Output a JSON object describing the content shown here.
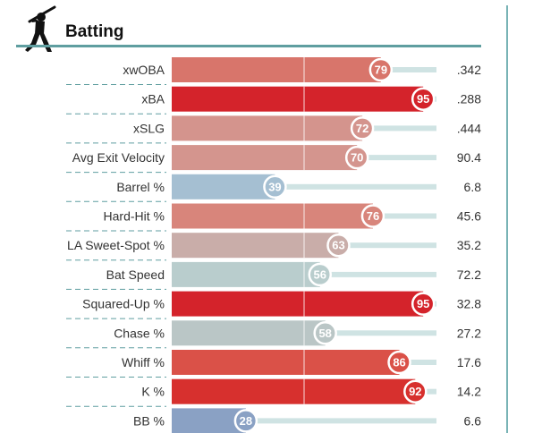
{
  "header": {
    "title": "Batting",
    "icon": "batter-silhouette-icon"
  },
  "chart_data": {
    "type": "bar",
    "orientation": "horizontal",
    "title": "Batting",
    "percentile_range": [
      0,
      100
    ],
    "rows": [
      {
        "label": "xwOBA",
        "percentile": 79,
        "value": ".342",
        "color": "#d8756b"
      },
      {
        "label": "xBA",
        "percentile": 95,
        "value": ".288",
        "color": "#d4232b"
      },
      {
        "label": "xSLG",
        "percentile": 72,
        "value": ".444",
        "color": "#d4948d"
      },
      {
        "label": "Avg Exit Velocity",
        "percentile": 70,
        "value": "90.4",
        "color": "#d4958e"
      },
      {
        "label": "Barrel %",
        "percentile": 39,
        "value": "6.8",
        "color": "#a5bfd2"
      },
      {
        "label": "Hard-Hit %",
        "percentile": 76,
        "value": "45.6",
        "color": "#d8857b"
      },
      {
        "label": "LA Sweet-Spot %",
        "percentile": 63,
        "value": "35.2",
        "color": "#c9ada9"
      },
      {
        "label": "Bat Speed",
        "percentile": 56,
        "value": "72.2",
        "color": "#b9cdcd"
      },
      {
        "label": "Squared-Up %",
        "percentile": 95,
        "value": "32.8",
        "color": "#d4232b"
      },
      {
        "label": "Chase %",
        "percentile": 58,
        "value": "27.2",
        "color": "#bac6c6"
      },
      {
        "label": "Whiff %",
        "percentile": 86,
        "value": "17.6",
        "color": "#da5148"
      },
      {
        "label": "K %",
        "percentile": 92,
        "value": "14.2",
        "color": "#d7302e"
      },
      {
        "label": "BB %",
        "percentile": 28,
        "value": "6.6",
        "color": "#8aa1c4"
      }
    ]
  }
}
